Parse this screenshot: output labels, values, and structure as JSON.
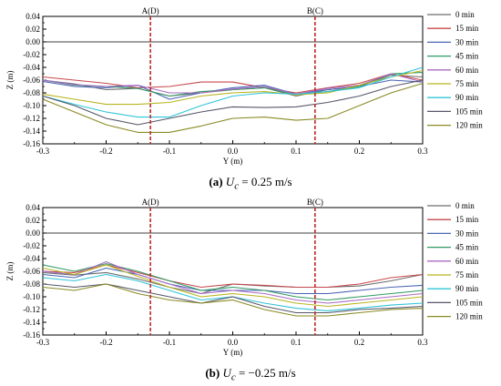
{
  "chart_data": [
    {
      "type": "line",
      "panel": "a",
      "caption": {
        "label": "(a)",
        "symbol": "U",
        "subscript": "c",
        "rest": " = 0.25 m/s"
      },
      "xlabel": "Y (m)",
      "ylabel": "Z (m)",
      "xlim": [
        -0.3,
        0.3
      ],
      "ylim": [
        -0.16,
        0.04
      ],
      "xticks": [
        "-0.3",
        "-0.2",
        "-0.1",
        "0.0",
        "0.1",
        "0.2",
        "0.3"
      ],
      "yticks": [
        "0.04",
        "0.02",
        "0.00",
        "-0.02",
        "-0.04",
        "-0.06",
        "-0.08",
        "-0.10",
        "-0.12",
        "-0.14",
        "-0.16"
      ],
      "hline": 0,
      "markers": [
        {
          "x": -0.13,
          "label": "A(D)"
        },
        {
          "x": 0.13,
          "label": "B(C)"
        }
      ],
      "x": [
        -0.3,
        -0.25,
        -0.2,
        -0.15,
        -0.1,
        -0.05,
        0.0,
        0.05,
        0.1,
        0.15,
        0.2,
        0.25,
        0.3
      ],
      "series": [
        {
          "name": "0 min",
          "values": [
            -0.06,
            -0.066,
            -0.075,
            -0.073,
            -0.085,
            -0.08,
            -0.075,
            -0.072,
            -0.085,
            -0.075,
            -0.07,
            -0.052,
            -0.055
          ]
        },
        {
          "name": "15 min",
          "values": [
            -0.055,
            -0.06,
            -0.065,
            -0.072,
            -0.07,
            -0.063,
            -0.063,
            -0.072,
            -0.08,
            -0.072,
            -0.065,
            -0.05,
            -0.06
          ]
        },
        {
          "name": "30 min",
          "values": [
            -0.062,
            -0.07,
            -0.072,
            -0.068,
            -0.09,
            -0.08,
            -0.072,
            -0.068,
            -0.082,
            -0.075,
            -0.07,
            -0.06,
            -0.063
          ]
        },
        {
          "name": "45 min",
          "values": [
            -0.06,
            -0.068,
            -0.07,
            -0.073,
            -0.085,
            -0.078,
            -0.075,
            -0.072,
            -0.083,
            -0.078,
            -0.07,
            -0.05,
            -0.048
          ]
        },
        {
          "name": "60 min",
          "values": [
            -0.06,
            -0.067,
            -0.07,
            -0.068,
            -0.08,
            -0.08,
            -0.074,
            -0.07,
            -0.082,
            -0.073,
            -0.068,
            -0.05,
            -0.063
          ]
        },
        {
          "name": "75 min",
          "values": [
            -0.082,
            -0.09,
            -0.098,
            -0.098,
            -0.095,
            -0.085,
            -0.08,
            -0.078,
            -0.083,
            -0.08,
            -0.068,
            -0.055,
            -0.045
          ]
        },
        {
          "name": "90 min",
          "values": [
            -0.085,
            -0.098,
            -0.11,
            -0.118,
            -0.118,
            -0.1,
            -0.085,
            -0.08,
            -0.082,
            -0.078,
            -0.072,
            -0.055,
            -0.04
          ]
        },
        {
          "name": "105 min",
          "values": [
            -0.085,
            -0.1,
            -0.12,
            -0.13,
            -0.12,
            -0.11,
            -0.102,
            -0.103,
            -0.102,
            -0.095,
            -0.085,
            -0.07,
            -0.06
          ]
        },
        {
          "name": "120 min",
          "values": [
            -0.09,
            -0.11,
            -0.13,
            -0.142,
            -0.142,
            -0.132,
            -0.12,
            -0.118,
            -0.123,
            -0.12,
            -0.1,
            -0.08,
            -0.065
          ]
        }
      ]
    },
    {
      "type": "line",
      "panel": "b",
      "caption": {
        "label": "(b)",
        "symbol": "U",
        "subscript": "c",
        "rest": " = −0.25 m/s"
      },
      "xlabel": "Y (m)",
      "ylabel": "Z (m)",
      "xlim": [
        -0.3,
        0.3
      ],
      "ylim": [
        -0.16,
        0.04
      ],
      "xticks": [
        "-0.3",
        "-0.2",
        "-0.1",
        "0.0",
        "0.1",
        "0.2",
        "0.3"
      ],
      "yticks": [
        "0.04",
        "0.02",
        "0.00",
        "-0.02",
        "-0.04",
        "-0.06",
        "-0.08",
        "-0.10",
        "-0.12",
        "-0.14",
        "-0.16"
      ],
      "hline": 0,
      "markers": [
        {
          "x": -0.13,
          "label": "A(D)"
        },
        {
          "x": 0.13,
          "label": "B(C)"
        }
      ],
      "x": [
        -0.3,
        -0.25,
        -0.2,
        -0.15,
        -0.1,
        -0.05,
        0.0,
        0.05,
        0.1,
        0.15,
        0.2,
        0.25,
        0.3
      ],
      "series": [
        {
          "name": "0 min",
          "values": [
            -0.062,
            -0.066,
            -0.062,
            -0.072,
            -0.085,
            -0.095,
            -0.08,
            -0.083,
            -0.085,
            -0.085,
            -0.083,
            -0.075,
            -0.065
          ]
        },
        {
          "name": "15 min",
          "values": [
            -0.06,
            -0.062,
            -0.05,
            -0.062,
            -0.075,
            -0.085,
            -0.08,
            -0.082,
            -0.085,
            -0.085,
            -0.08,
            -0.07,
            -0.065
          ]
        },
        {
          "name": "30 min",
          "values": [
            -0.065,
            -0.07,
            -0.055,
            -0.065,
            -0.08,
            -0.09,
            -0.09,
            -0.09,
            -0.095,
            -0.095,
            -0.09,
            -0.085,
            -0.082
          ]
        },
        {
          "name": "45 min",
          "values": [
            -0.05,
            -0.06,
            -0.048,
            -0.06,
            -0.075,
            -0.09,
            -0.085,
            -0.09,
            -0.1,
            -0.105,
            -0.1,
            -0.095,
            -0.09
          ]
        },
        {
          "name": "60 min",
          "values": [
            -0.06,
            -0.065,
            -0.045,
            -0.065,
            -0.08,
            -0.095,
            -0.09,
            -0.095,
            -0.105,
            -0.11,
            -0.105,
            -0.1,
            -0.095
          ]
        },
        {
          "name": "75 min",
          "values": [
            -0.055,
            -0.065,
            -0.05,
            -0.068,
            -0.085,
            -0.1,
            -0.095,
            -0.1,
            -0.11,
            -0.115,
            -0.11,
            -0.105,
            -0.1
          ]
        },
        {
          "name": "90 min",
          "values": [
            -0.07,
            -0.075,
            -0.065,
            -0.075,
            -0.09,
            -0.105,
            -0.1,
            -0.11,
            -0.118,
            -0.122,
            -0.118,
            -0.113,
            -0.11
          ]
        },
        {
          "name": "105 min",
          "values": [
            -0.08,
            -0.085,
            -0.08,
            -0.09,
            -0.1,
            -0.11,
            -0.1,
            -0.115,
            -0.125,
            -0.125,
            -0.12,
            -0.118,
            -0.115
          ]
        },
        {
          "name": "120 min",
          "values": [
            -0.085,
            -0.09,
            -0.08,
            -0.095,
            -0.105,
            -0.11,
            -0.105,
            -0.12,
            -0.13,
            -0.13,
            -0.125,
            -0.12,
            -0.118
          ]
        }
      ]
    }
  ],
  "colors": {
    "0 min": "#6e6e6e",
    "15 min": "#c8484a",
    "30 min": "#4a66b4",
    "45 min": "#2f9a62",
    "60 min": "#a86bc4",
    "75 min": "#b8b51e",
    "90 min": "#2fc4d8",
    "105 min": "#56566a",
    "120 min": "#8a8a24",
    "marker": "#c0282a",
    "axis": "#000000"
  }
}
